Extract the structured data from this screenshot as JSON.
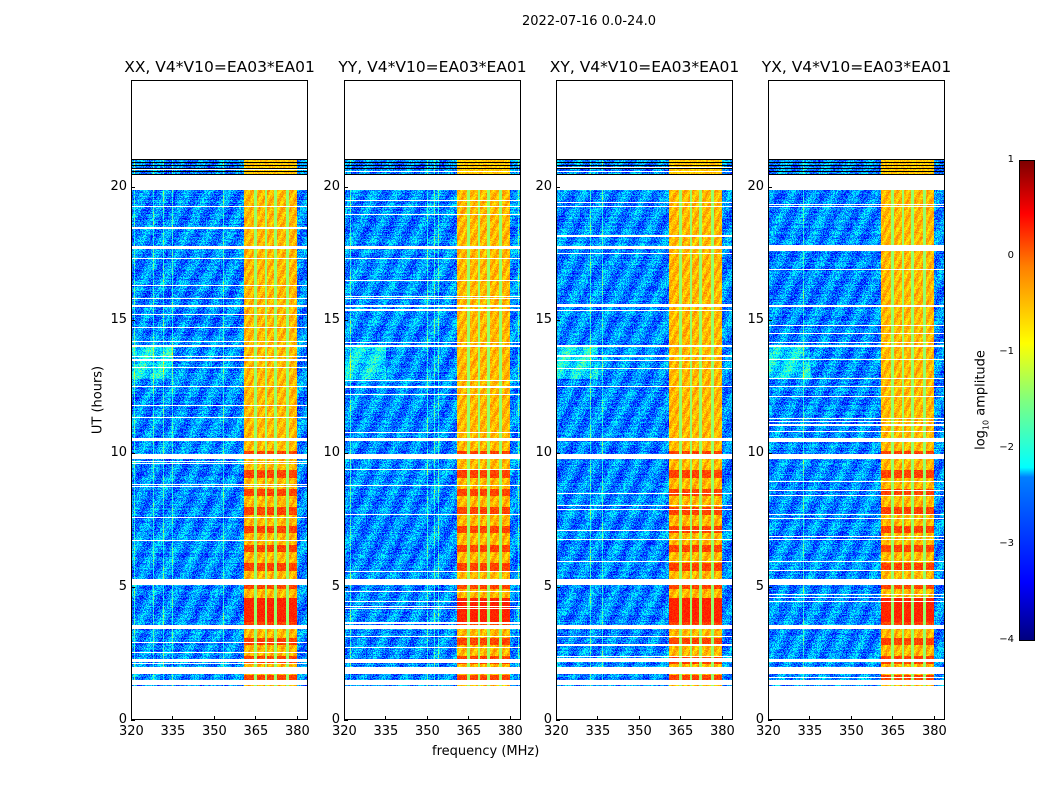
{
  "suptitle": "2022-07-16 0.0-24.0",
  "chart_data": {
    "type": "heatmap",
    "title": "2022-07-16 0.0-24.0",
    "xlabel": "frequency (MHz)",
    "ylabel": "UT (hours)",
    "xlim": [
      320,
      384
    ],
    "ylim": [
      0,
      24
    ],
    "xticks": [
      320,
      335,
      350,
      365,
      380
    ],
    "yticks": [
      0,
      5,
      10,
      15,
      20
    ],
    "data_time_range_hours": [
      1.3,
      21.05
    ],
    "bright_band_mhz": [
      360.5,
      380
    ],
    "flagged_gaps_hours": [
      [
        1.35,
        1.5
      ],
      [
        1.75,
        2.0
      ],
      [
        2.2,
        2.3
      ],
      [
        3.45,
        3.6
      ],
      [
        5.1,
        5.3
      ],
      [
        9.8,
        10.0
      ],
      [
        10.5,
        10.6
      ],
      [
        19.9,
        20.45
      ],
      [
        19.25,
        19.3
      ],
      [
        17.7,
        17.8
      ],
      [
        15.5,
        15.6
      ],
      [
        14.0,
        14.1
      ],
      [
        12.5,
        12.55
      ]
    ],
    "colorbar": {
      "label_prefix": "log",
      "label_sub": "10",
      "label_suffix": " amplitude",
      "vmin": -4,
      "vmax": 1,
      "ticks": [
        "1",
        "0",
        "−1",
        "−2",
        "−3",
        "−4"
      ],
      "colormap": "jet"
    },
    "panels": [
      {
        "title": "XX, V4*V10=EA03*EA01"
      },
      {
        "title": "YY, V4*V10=EA03*EA01"
      },
      {
        "title": "XY, V4*V10=EA03*EA01"
      },
      {
        "title": "YX, V4*V10=EA03*EA01"
      }
    ]
  }
}
